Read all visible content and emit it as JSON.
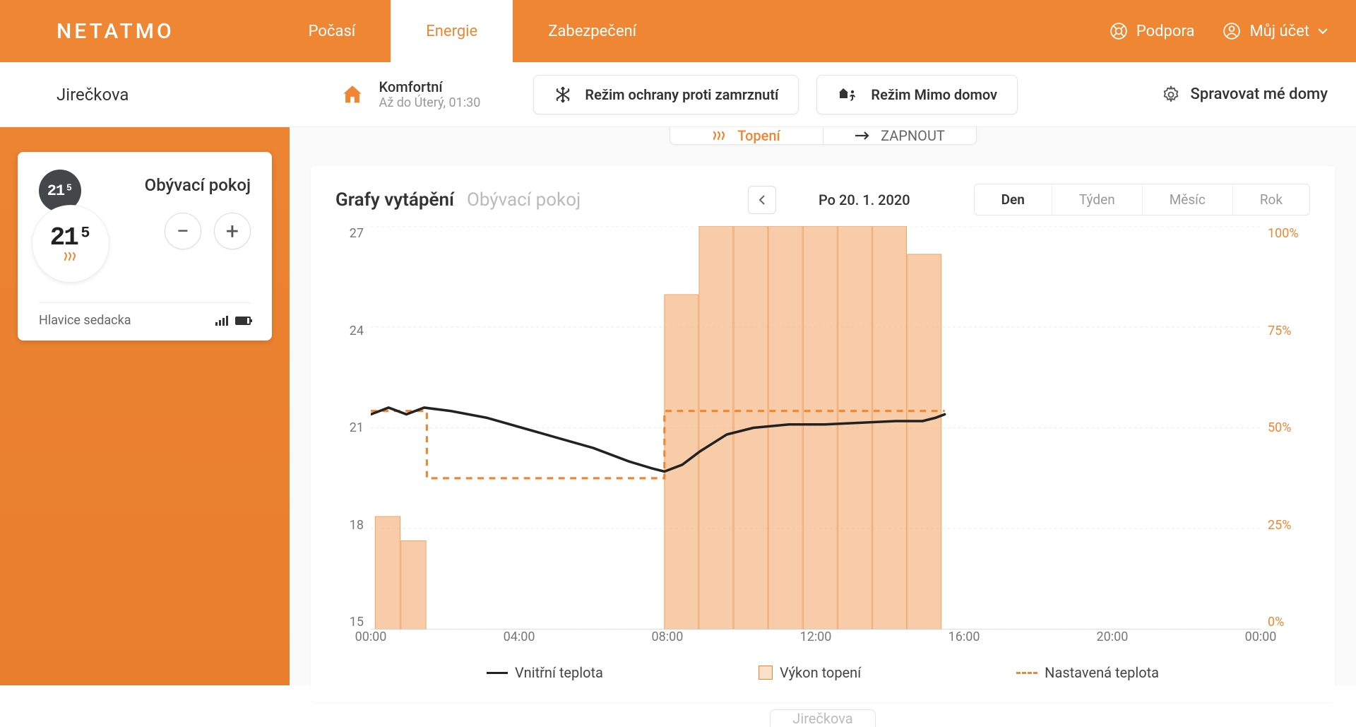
{
  "brand": "NETATMO",
  "nav": {
    "tabs": [
      {
        "label": "Počasí",
        "active": false
      },
      {
        "label": "Energie",
        "active": true
      },
      {
        "label": "Zabezpečení",
        "active": false
      }
    ],
    "support": "Podpora",
    "account": "Můj účet"
  },
  "subheader": {
    "home_name": "Jirečkova",
    "mode_title": "Komfortní",
    "mode_sub": "Až do Úterý, 01:30",
    "frost_btn": "Režim ochrany proti zamrznutí",
    "away_btn": "Režim Mimo domov",
    "manage": "Spravovat mé domy"
  },
  "sidebar": {
    "temp_set": "21⁵",
    "temp_current": "21⁵",
    "room_name": "Obývací pokoj",
    "valve_name": "Hlavice sedacka",
    "battery_pct": 85
  },
  "heating_tabs": {
    "left": "Topení",
    "right": "ZAPNOUT"
  },
  "chart": {
    "title": "Grafy vytápění",
    "subtitle": "Obývací pokoj",
    "date": "Po 20. 1. 2020",
    "range_tabs": [
      "Den",
      "Týden",
      "Měsíc",
      "Rok"
    ],
    "range_active": 0,
    "y_left_ticks": [
      27,
      24,
      21,
      18,
      15
    ],
    "y_right_ticks": [
      "100%",
      "75%",
      "50%",
      "25%",
      "0%"
    ],
    "x_ticks": [
      {
        "pos": 0.0,
        "label": "00:00"
      },
      {
        "pos": 0.1667,
        "label": "04:00"
      },
      {
        "pos": 0.3333,
        "label": "08:00"
      },
      {
        "pos": 0.5,
        "label": "12:00"
      },
      {
        "pos": 0.6667,
        "label": "16:00"
      },
      {
        "pos": 0.8333,
        "label": "20:00"
      },
      {
        "pos": 1.0,
        "label": "00:00"
      }
    ],
    "ylim": [
      15,
      27
    ],
    "bars": [
      {
        "x": 0.005,
        "w": 0.028,
        "pct": 28
      },
      {
        "x": 0.034,
        "w": 0.028,
        "pct": 22
      },
      {
        "x": 0.33,
        "w": 0.038,
        "pct": 83
      },
      {
        "x": 0.369,
        "w": 0.038,
        "pct": 100
      },
      {
        "x": 0.408,
        "w": 0.038,
        "pct": 100
      },
      {
        "x": 0.447,
        "w": 0.038,
        "pct": 100
      },
      {
        "x": 0.486,
        "w": 0.038,
        "pct": 100
      },
      {
        "x": 0.525,
        "w": 0.038,
        "pct": 100
      },
      {
        "x": 0.564,
        "w": 0.038,
        "pct": 100
      },
      {
        "x": 0.603,
        "w": 0.038,
        "pct": 93
      }
    ],
    "temp_line": [
      {
        "x": 0.0,
        "y": 21.4
      },
      {
        "x": 0.02,
        "y": 21.6
      },
      {
        "x": 0.04,
        "y": 21.4
      },
      {
        "x": 0.06,
        "y": 21.6
      },
      {
        "x": 0.09,
        "y": 21.5
      },
      {
        "x": 0.13,
        "y": 21.3
      },
      {
        "x": 0.17,
        "y": 21.0
      },
      {
        "x": 0.21,
        "y": 20.7
      },
      {
        "x": 0.25,
        "y": 20.4
      },
      {
        "x": 0.29,
        "y": 20.0
      },
      {
        "x": 0.315,
        "y": 19.8
      },
      {
        "x": 0.33,
        "y": 19.7
      },
      {
        "x": 0.35,
        "y": 19.9
      },
      {
        "x": 0.37,
        "y": 20.3
      },
      {
        "x": 0.4,
        "y": 20.8
      },
      {
        "x": 0.43,
        "y": 21.0
      },
      {
        "x": 0.47,
        "y": 21.1
      },
      {
        "x": 0.51,
        "y": 21.1
      },
      {
        "x": 0.55,
        "y": 21.15
      },
      {
        "x": 0.59,
        "y": 21.2
      },
      {
        "x": 0.62,
        "y": 21.2
      },
      {
        "x": 0.635,
        "y": 21.3
      },
      {
        "x": 0.645,
        "y": 21.4
      }
    ],
    "setpoint_line": [
      {
        "x": 0.0,
        "y": 21.5
      },
      {
        "x": 0.063,
        "y": 21.5
      },
      {
        "x": 0.063,
        "y": 19.5
      },
      {
        "x": 0.33,
        "y": 19.5
      },
      {
        "x": 0.33,
        "y": 21.5
      },
      {
        "x": 0.645,
        "y": 21.5
      }
    ],
    "legend": {
      "temp": "Vnitřní teplota",
      "power": "Výkon topení",
      "set": "Nastavená teplota"
    },
    "colors": {
      "accent": "#ee8633",
      "bar_fill": "rgba(244,176,122,0.65)",
      "bar_stroke": "#eda567",
      "temp_line": "#222222",
      "gridline": "#eeeeee",
      "axis_text": "#777777"
    }
  },
  "footer_home": "Jirečkova"
}
